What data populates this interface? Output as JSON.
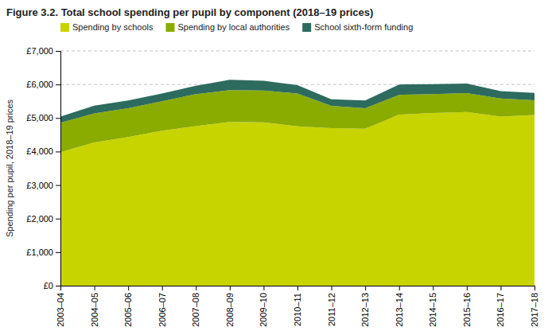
{
  "chart_data": {
    "type": "area",
    "stacked": true,
    "title": "Figure 3.2.  Total school spending per pupil by component (2018–19 prices)",
    "ylabel": "Spending per pupil, 2018–19 prices",
    "categories": [
      "2003–04",
      "2004–05",
      "2005–06",
      "2006–07",
      "2007–08",
      "2008–09",
      "2009–10",
      "2010–11",
      "2011–12",
      "2012–13",
      "2013–14",
      "2014–15",
      "2015–16",
      "2016–17",
      "2017–18"
    ],
    "series": [
      {
        "name": "Spending by schools",
        "color": "#c8d400",
        "values": [
          3980,
          4270,
          4430,
          4620,
          4760,
          4880,
          4870,
          4750,
          4700,
          4680,
          5100,
          5150,
          5180,
          5040,
          5090
        ]
      },
      {
        "name": "Spending by local authorities",
        "color": "#8aac00",
        "values": [
          880,
          870,
          860,
          880,
          950,
          950,
          950,
          980,
          660,
          610,
          590,
          560,
          560,
          540,
          440
        ]
      },
      {
        "name": "School sixth-form funding",
        "color": "#2d6b5e",
        "values": [
          180,
          230,
          230,
          230,
          250,
          310,
          290,
          250,
          200,
          230,
          310,
          300,
          290,
          220,
          220
        ]
      }
    ],
    "ylim": [
      0,
      7000
    ],
    "yticks": [
      {
        "value": 0,
        "label": "£0"
      },
      {
        "value": 1000,
        "label": "£1,000"
      },
      {
        "value": 2000,
        "label": "£2,000"
      },
      {
        "value": 3000,
        "label": "£3,000"
      },
      {
        "value": 4000,
        "label": "£4,000"
      },
      {
        "value": 5000,
        "label": "£5,000"
      },
      {
        "value": 6000,
        "label": "£6,000"
      },
      {
        "value": 7000,
        "label": "£7,000"
      }
    ],
    "grid": true,
    "legend": "upper left"
  }
}
